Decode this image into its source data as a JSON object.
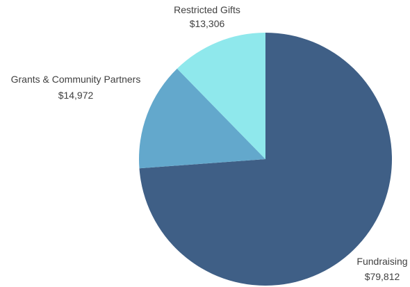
{
  "chart_data": {
    "type": "pie",
    "slices": [
      {
        "label": "Fundraising",
        "value": 79812,
        "display": "$79,812",
        "color": "#3f5f86"
      },
      {
        "label": "Grants & Community Partners",
        "value": 14972,
        "display": "$14,972",
        "color": "#63a8cc"
      },
      {
        "label": "Restricted Gifts",
        "value": 13306,
        "display": "$13,306",
        "color": "#8fe8ec"
      }
    ],
    "start": "12 o'clock",
    "direction": "clockwise",
    "legend": "none",
    "data_labels": "outside"
  }
}
